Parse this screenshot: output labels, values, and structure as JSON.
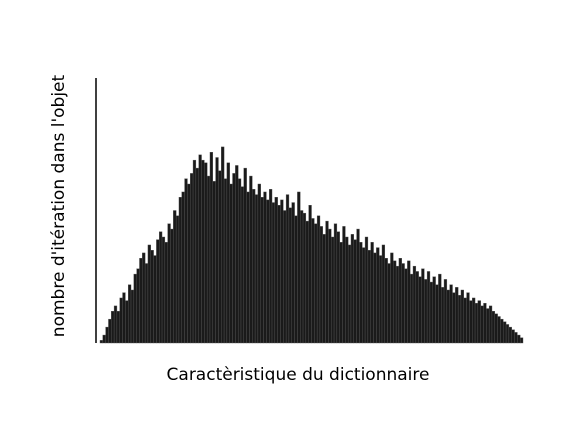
{
  "chart_data": {
    "type": "bar",
    "title": "",
    "xlabel": "Caractèristique du dictionnaire",
    "ylabel": "nombre d'itération dans l'objet",
    "x_ticks_shown": false,
    "y_ticks_shown": false,
    "grid": false,
    "legend": "none",
    "ylim": [
      0,
      1
    ],
    "bar_color": "#1a1a1a",
    "bar_edge_color": "#555555",
    "values": [
      0.01,
      0.03,
      0.06,
      0.09,
      0.12,
      0.14,
      0.12,
      0.17,
      0.19,
      0.16,
      0.22,
      0.2,
      0.26,
      0.28,
      0.32,
      0.34,
      0.3,
      0.37,
      0.35,
      0.33,
      0.39,
      0.42,
      0.4,
      0.38,
      0.45,
      0.43,
      0.5,
      0.48,
      0.55,
      0.57,
      0.62,
      0.6,
      0.64,
      0.69,
      0.66,
      0.71,
      0.69,
      0.68,
      0.63,
      0.72,
      0.61,
      0.7,
      0.65,
      0.74,
      0.62,
      0.68,
      0.6,
      0.64,
      0.67,
      0.62,
      0.59,
      0.66,
      0.57,
      0.63,
      0.58,
      0.56,
      0.6,
      0.55,
      0.57,
      0.54,
      0.58,
      0.53,
      0.55,
      0.52,
      0.54,
      0.5,
      0.56,
      0.51,
      0.53,
      0.48,
      0.57,
      0.5,
      0.49,
      0.46,
      0.52,
      0.47,
      0.45,
      0.48,
      0.44,
      0.41,
      0.46,
      0.43,
      0.4,
      0.45,
      0.42,
      0.38,
      0.44,
      0.4,
      0.37,
      0.41,
      0.39,
      0.43,
      0.38,
      0.36,
      0.4,
      0.35,
      0.38,
      0.34,
      0.36,
      0.33,
      0.37,
      0.32,
      0.3,
      0.34,
      0.31,
      0.29,
      0.32,
      0.3,
      0.28,
      0.31,
      0.26,
      0.29,
      0.27,
      0.25,
      0.28,
      0.24,
      0.27,
      0.23,
      0.25,
      0.22,
      0.26,
      0.21,
      0.24,
      0.2,
      0.22,
      0.19,
      0.21,
      0.18,
      0.2,
      0.17,
      0.19,
      0.16,
      0.17,
      0.15,
      0.16,
      0.14,
      0.15,
      0.13,
      0.14,
      0.12,
      0.11,
      0.1,
      0.09,
      0.08,
      0.07,
      0.06,
      0.05,
      0.04,
      0.03,
      0.02
    ]
  }
}
